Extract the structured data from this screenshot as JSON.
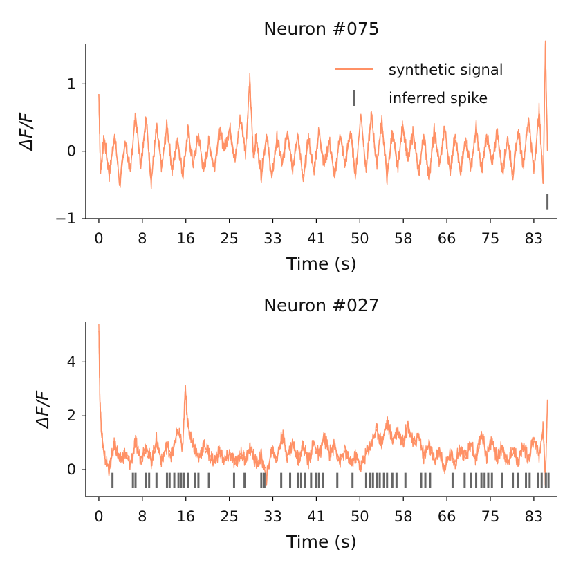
{
  "chart_data": [
    {
      "type": "line",
      "title": "Neuron #075",
      "xlabel": "Time (s)",
      "ylabel": "ΔF/F",
      "xlim": [
        -2.5,
        87.5
      ],
      "ylim": [
        -1.0,
        1.6
      ],
      "xticks": [
        0,
        8.3,
        16.6,
        24.9,
        33.2,
        41.5,
        49.8,
        58.1,
        66.4,
        74.7,
        83.0
      ],
      "xtick_labels": [
        "0",
        "8",
        "16",
        "25",
        "33",
        "41",
        "50",
        "58",
        "66",
        "75",
        "83"
      ],
      "yticks": [
        -1,
        0,
        1
      ],
      "ytick_labels": [
        "−1",
        "0",
        "1"
      ],
      "legend": {
        "placement": "top-right",
        "entries": [
          "synthetic signal",
          "inferred spike"
        ]
      },
      "series": [
        {
          "name": "synthetic signal",
          "color": "#ff9166",
          "x": [
            0.0,
            0.3,
            1.0,
            2.0,
            3.0,
            4.0,
            5.0,
            6.0,
            7.0,
            8.0,
            9.0,
            10.0,
            11.0,
            12.0,
            13.0,
            14.0,
            15.0,
            16.0,
            17.0,
            18.0,
            19.0,
            20.0,
            21.0,
            22.0,
            23.0,
            24.0,
            25.0,
            26.0,
            27.0,
            28.0,
            28.8,
            29.5,
            30.0,
            31.0,
            32.0,
            33.0,
            34.0,
            35.0,
            36.0,
            37.0,
            38.0,
            39.0,
            40.0,
            41.0,
            42.0,
            43.0,
            44.0,
            45.0,
            46.0,
            47.0,
            48.0,
            49.0,
            50.0,
            51.0,
            52.0,
            53.0,
            54.0,
            55.0,
            56.0,
            57.0,
            58.0,
            59.0,
            60.0,
            61.0,
            62.0,
            63.0,
            64.0,
            65.0,
            66.0,
            67.0,
            68.0,
            69.0,
            70.0,
            71.0,
            72.0,
            73.0,
            74.0,
            75.0,
            76.0,
            77.0,
            78.0,
            79.0,
            80.0,
            81.0,
            82.0,
            83.0,
            84.0,
            84.8,
            85.2,
            85.6
          ],
          "y": [
            0.85,
            -0.3,
            0.2,
            -0.35,
            0.25,
            -0.5,
            0.15,
            -0.3,
            0.55,
            -0.2,
            0.5,
            -0.45,
            0.35,
            -0.25,
            0.4,
            -0.3,
            0.2,
            -0.35,
            0.3,
            -0.2,
            0.25,
            -0.3,
            0.15,
            -0.25,
            0.3,
            0.05,
            0.35,
            -0.15,
            0.5,
            0.0,
            1.05,
            -0.1,
            0.2,
            -0.35,
            0.25,
            -0.4,
            0.2,
            -0.2,
            0.3,
            -0.25,
            0.25,
            -0.45,
            0.2,
            -0.3,
            0.3,
            -0.2,
            0.15,
            -0.4,
            0.25,
            -0.2,
            0.3,
            -0.35,
            0.55,
            -0.3,
            0.55,
            -0.2,
            0.45,
            -0.4,
            0.3,
            -0.25,
            0.4,
            -0.15,
            0.3,
            -0.35,
            0.25,
            -0.4,
            0.3,
            -0.2,
            0.35,
            -0.3,
            0.25,
            -0.35,
            0.2,
            -0.25,
            0.35,
            -0.3,
            0.25,
            -0.2,
            0.3,
            -0.3,
            0.2,
            -0.35,
            0.3,
            -0.2,
            0.5,
            -0.3,
            0.6,
            -0.45,
            1.6,
            0.0
          ]
        },
        {
          "name": "inferred spike",
          "type": "event",
          "color": "#666666",
          "times": [
            85.6
          ],
          "level": -0.75
        }
      ]
    },
    {
      "type": "line",
      "title": "Neuron #027",
      "xlabel": "Time (s)",
      "ylabel": "ΔF/F",
      "xlim": [
        -2.5,
        87.5
      ],
      "ylim": [
        -1.0,
        5.5
      ],
      "xticks": [
        0,
        8.3,
        16.6,
        24.9,
        33.2,
        41.5,
        49.8,
        58.1,
        66.4,
        74.7,
        83.0
      ],
      "xtick_labels": [
        "0",
        "8",
        "16",
        "25",
        "33",
        "41",
        "50",
        "58",
        "66",
        "75",
        "83"
      ],
      "yticks": [
        0,
        2,
        4
      ],
      "ytick_labels": [
        "0",
        "2",
        "4"
      ],
      "series": [
        {
          "color": "#ff9166",
          "x": [
            0.0,
            0.2,
            0.5,
            1.0,
            2.0,
            3.0,
            4.0,
            5.0,
            6.0,
            7.0,
            8.0,
            9.0,
            10.0,
            11.0,
            12.0,
            13.0,
            14.0,
            15.0,
            16.0,
            16.5,
            17.0,
            18.0,
            19.0,
            20.0,
            21.0,
            22.0,
            23.0,
            24.0,
            25.0,
            26.0,
            27.0,
            28.0,
            29.0,
            30.0,
            31.0,
            32.0,
            33.0,
            34.0,
            35.0,
            36.0,
            37.0,
            38.0,
            39.0,
            40.0,
            41.0,
            42.0,
            43.0,
            44.0,
            45.0,
            46.0,
            47.0,
            48.0,
            49.0,
            50.0,
            51.0,
            52.0,
            53.0,
            54.0,
            55.0,
            56.0,
            57.0,
            58.0,
            59.0,
            60.0,
            61.0,
            62.0,
            63.0,
            64.0,
            65.0,
            66.0,
            67.0,
            68.0,
            69.0,
            70.0,
            71.0,
            72.0,
            73.0,
            74.0,
            75.0,
            76.0,
            77.0,
            78.0,
            79.0,
            80.0,
            81.0,
            82.0,
            83.0,
            84.0,
            84.8,
            85.2,
            85.6
          ],
          "y": [
            5.4,
            2.6,
            1.5,
            0.5,
            0.0,
            1.0,
            0.3,
            0.6,
            0.2,
            1.0,
            0.4,
            0.9,
            0.3,
            1.1,
            0.3,
            0.9,
            0.5,
            1.5,
            0.8,
            3.0,
            1.6,
            1.0,
            0.4,
            0.9,
            0.6,
            0.3,
            0.7,
            0.3,
            0.6,
            0.2,
            0.6,
            0.4,
            0.8,
            0.2,
            0.5,
            -0.3,
            0.8,
            0.4,
            1.3,
            0.5,
            1.0,
            0.4,
            0.9,
            0.3,
            1.0,
            0.5,
            1.2,
            0.6,
            0.9,
            0.3,
            0.7,
            0.2,
            0.5,
            0.1,
            0.6,
            1.0,
            1.5,
            1.0,
            1.8,
            1.1,
            1.5,
            1.0,
            1.7,
            0.9,
            1.3,
            0.5,
            0.9,
            0.3,
            0.7,
            0.0,
            0.6,
            0.3,
            0.8,
            0.4,
            1.0,
            0.3,
            1.4,
            0.5,
            1.1,
            0.4,
            0.9,
            0.2,
            0.8,
            0.3,
            0.9,
            0.4,
            1.2,
            0.5,
            1.6,
            -0.5,
            2.6
          ]
        },
        {
          "type": "event",
          "color": "#666666",
          "times": [
            2.6,
            6.5,
            7.0,
            9.0,
            9.6,
            11.0,
            13.0,
            13.5,
            14.4,
            15.2,
            15.7,
            16.3,
            17.0,
            18.3,
            19.0,
            21.0,
            25.8,
            27.8,
            31.0,
            31.6,
            34.8,
            36.5,
            38.0,
            38.6,
            39.3,
            40.5,
            41.5,
            42.0,
            42.8,
            45.5,
            48.4,
            51.0,
            51.7,
            52.3,
            53.0,
            53.6,
            54.4,
            55.0,
            56.0,
            56.8,
            58.5,
            61.5,
            62.3,
            63.2,
            67.5,
            69.8,
            71.0,
            72.0,
            73.0,
            73.6,
            74.3,
            75.0,
            77.0,
            79.0,
            80.0,
            81.5,
            82.2,
            83.8,
            84.5,
            85.3,
            85.8
          ],
          "level": -0.4
        }
      ]
    }
  ]
}
